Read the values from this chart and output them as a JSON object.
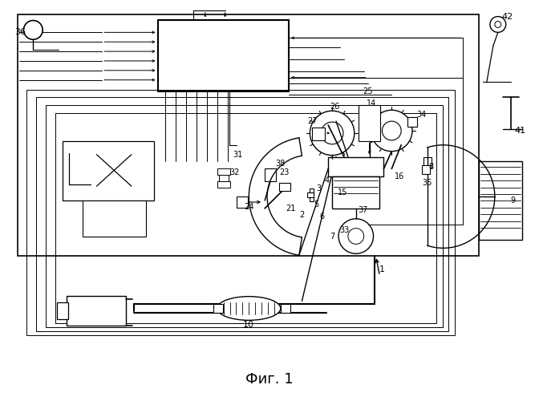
{
  "title": "Фиг. 1",
  "title_fontsize": 13,
  "bg_color": "#ffffff",
  "line_color": "#000000",
  "fig_width": 6.72,
  "fig_height": 5.0
}
